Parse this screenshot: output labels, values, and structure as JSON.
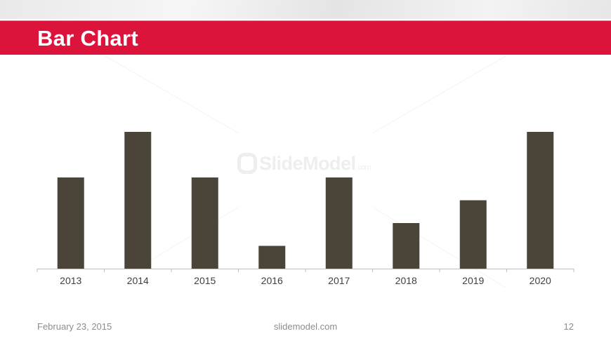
{
  "slide": {
    "title": "Bar Chart",
    "footer_date": "February 23, 2015",
    "footer_site": "slidemodel.com",
    "page_number": "12",
    "watermark": "SlideModel",
    "watermark_suffix": ".com"
  },
  "colors": {
    "title_bar": "#dc143c",
    "bar": "#4a4538",
    "axis": "#bfbfbf",
    "tick_label": "#404040"
  },
  "chart_data": {
    "type": "bar",
    "title": "",
    "xlabel": "",
    "ylabel": "",
    "categories": [
      "2013",
      "2014",
      "2015",
      "2016",
      "2017",
      "2018",
      "2019",
      "2020"
    ],
    "values": [
      4,
      6,
      4,
      1,
      4,
      2,
      3,
      6
    ],
    "ylim": [
      0,
      6.5
    ],
    "grid": false,
    "legend": "none"
  }
}
